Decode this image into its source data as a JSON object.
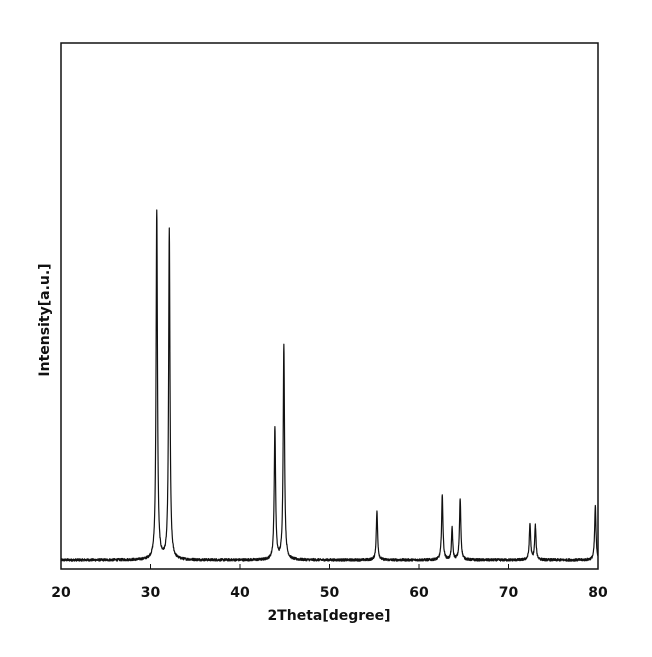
{
  "chart_data": {
    "type": "line",
    "title": "",
    "xlabel": "2Theta[degree]",
    "ylabel": "Intensity[a.u.]",
    "xlim": [
      20,
      80
    ],
    "ylim": [
      0,
      100
    ],
    "x_ticks": [
      20,
      30,
      40,
      50,
      60,
      70,
      80
    ],
    "x_tick_labels": [
      "20",
      "30",
      "40",
      "50",
      "60",
      "70",
      "80"
    ],
    "y_tick_labels_shown": false,
    "grid": false,
    "legend": "none",
    "line_color": "#111111",
    "baseline": 2.5,
    "noise_amplitude": 0.35,
    "peaks": [
      {
        "x": 30.7,
        "height": 99,
        "width": 0.09
      },
      {
        "x": 32.1,
        "height": 92,
        "width": 0.09
      },
      {
        "x": 43.9,
        "height": 37,
        "width": 0.09
      },
      {
        "x": 44.9,
        "height": 60,
        "width": 0.09
      },
      {
        "x": 55.3,
        "height": 13.5,
        "width": 0.09
      },
      {
        "x": 62.6,
        "height": 18,
        "width": 0.09
      },
      {
        "x": 63.7,
        "height": 9,
        "width": 0.08
      },
      {
        "x": 64.6,
        "height": 17,
        "width": 0.09
      },
      {
        "x": 72.4,
        "height": 10,
        "width": 0.09
      },
      {
        "x": 73.0,
        "height": 9.5,
        "width": 0.09
      },
      {
        "x": 79.7,
        "height": 15,
        "width": 0.09
      }
    ]
  }
}
